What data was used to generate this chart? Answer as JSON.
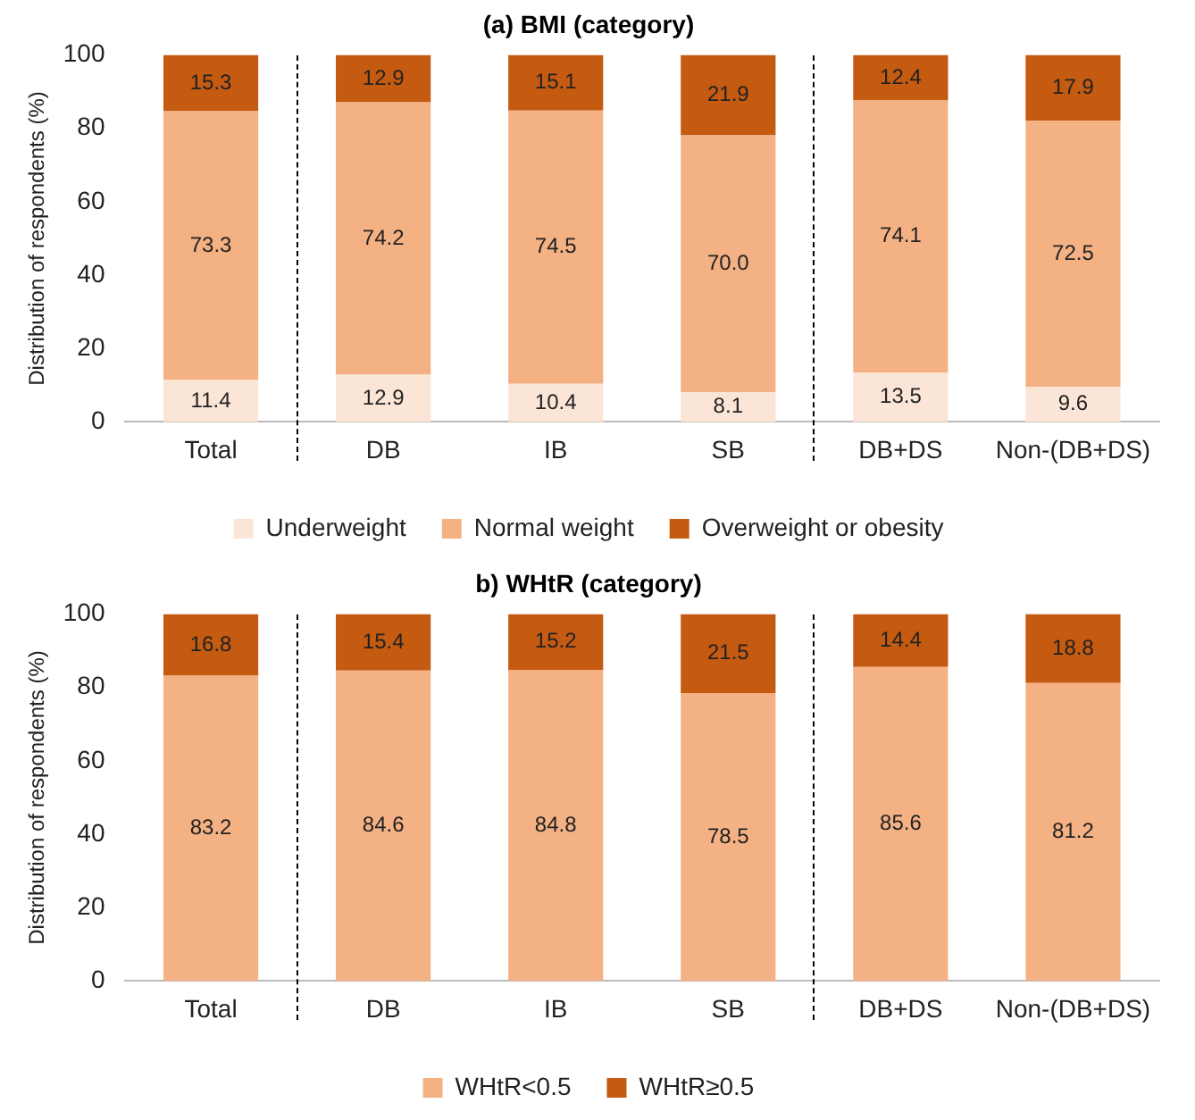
{
  "chart_data": [
    {
      "type": "bar",
      "title": "(a) BMI (category)",
      "ylabel": "Distribution of respondents (%)",
      "categories": [
        "Total",
        "DB",
        "IB",
        "SB",
        "DB+DS",
        "Non-(DB+DS)"
      ],
      "stacked": true,
      "ylim": [
        0,
        100
      ],
      "yticks": [
        0,
        20,
        40,
        60,
        80,
        100
      ],
      "grid": false,
      "legend": "bottom",
      "series": [
        {
          "name": "Underweight",
          "color": "#fbe5d6",
          "values": [
            11.4,
            12.9,
            10.4,
            8.1,
            13.5,
            9.6
          ],
          "value_labels": [
            "11.4",
            "12.9",
            "10.4",
            "8.1",
            "13.5",
            "9.6"
          ]
        },
        {
          "name": "Normal weight",
          "color": "#f4b183",
          "values": [
            73.3,
            74.2,
            74.5,
            70.0,
            74.1,
            72.5
          ],
          "value_labels": [
            "73.3",
            "74.2",
            "74.5",
            "70.0",
            "74.1",
            "72.5"
          ]
        },
        {
          "name": "Overweight or obesity",
          "color": "#c55a11",
          "values": [
            15.3,
            12.9,
            15.1,
            21.9,
            12.4,
            17.9
          ],
          "value_labels": [
            "15.3",
            "12.9",
            "15.1",
            "21.9",
            "12.4",
            "17.9"
          ]
        }
      ]
    },
    {
      "type": "bar",
      "title": "b) WHtR (category)",
      "ylabel": "Distribution of respondents (%)",
      "categories": [
        "Total",
        "DB",
        "IB",
        "SB",
        "DB+DS",
        "Non-(DB+DS)"
      ],
      "stacked": true,
      "ylim": [
        0,
        100
      ],
      "yticks": [
        0,
        20,
        40,
        60,
        80,
        100
      ],
      "grid": false,
      "legend": "bottom",
      "series": [
        {
          "name": "WHtR<0.5",
          "color": "#f4b183",
          "values": [
            83.2,
            84.6,
            84.8,
            78.5,
            85.6,
            81.2
          ],
          "value_labels": [
            "83.2",
            "84.6",
            "84.8",
            "78.5",
            "85.6",
            "81.2"
          ]
        },
        {
          "name": "WHtR≥0.5",
          "color": "#c55a11",
          "values": [
            16.8,
            15.4,
            15.2,
            21.5,
            14.4,
            18.8
          ],
          "value_labels": [
            "16.8",
            "15.4",
            "15.2",
            "21.5",
            "14.4",
            "18.8"
          ]
        }
      ]
    }
  ]
}
